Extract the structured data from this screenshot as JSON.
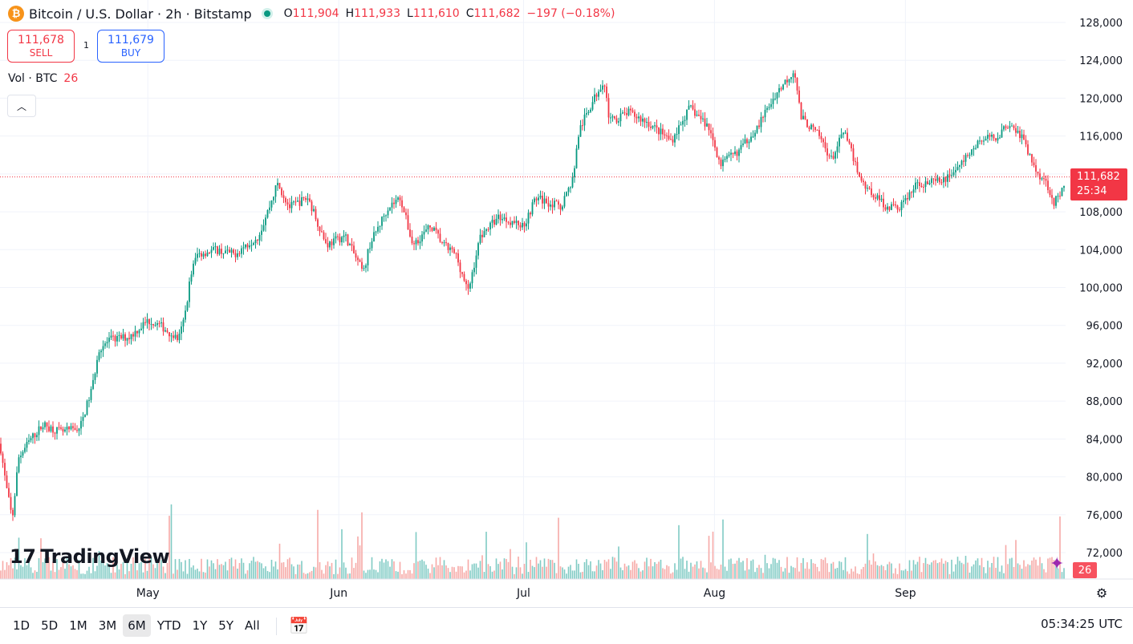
{
  "header": {
    "coin_symbol": "₿",
    "title": "Bitcoin / U.S. Dollar · 2h · Bitstamp",
    "ohlc": [
      {
        "key": "O",
        "value": "111,904"
      },
      {
        "key": "H",
        "value": "111,933"
      },
      {
        "key": "L",
        "value": "111,610"
      },
      {
        "key": "C",
        "value": "111,682"
      }
    ],
    "change": "−197 (−0.18%)"
  },
  "trade": {
    "sell_price": "111,678",
    "sell_label": "SELL",
    "spread": "1",
    "buy_price": "111,679",
    "buy_label": "BUY"
  },
  "volume_legend": {
    "label": "Vol · BTC",
    "value": "26"
  },
  "collapse_icon": "chevron-up-icon",
  "brand": {
    "name": "TradingView",
    "mark": "17"
  },
  "price_tag": {
    "price": "111,682",
    "countdown": "25:34"
  },
  "volume_tag": "26",
  "bottom_bar": {
    "ranges": [
      "1D",
      "5D",
      "1M",
      "3M",
      "6M",
      "YTD",
      "1Y",
      "5Y",
      "All"
    ],
    "active_range": "6M",
    "clock": "05:34:25 UTC"
  },
  "colors": {
    "up": "#089981",
    "down": "#f23645",
    "up_vol": "#80cbc4",
    "down_vol": "#f7a9a7",
    "grid": "#f0f3fa"
  },
  "chart_data": {
    "type": "candlestick",
    "title": "",
    "ylabel": "",
    "xlabel": "",
    "y_ticks": [
      72000,
      76000,
      80000,
      84000,
      88000,
      92000,
      96000,
      100000,
      104000,
      108000,
      112000,
      116000,
      120000,
      124000,
      128000
    ],
    "y_tick_labels": [
      "72,000",
      "76,000",
      "80,000",
      "84,000",
      "88,000",
      "92,000",
      "96,000",
      "100,000",
      "104,000",
      "108,000",
      "",
      "116,000",
      "120,000",
      "124,000",
      "128,000"
    ],
    "ylim": [
      69000,
      129500
    ],
    "x_labels": [
      {
        "label": "May",
        "date": "2025-05-01"
      },
      {
        "label": "Jun",
        "date": "2025-06-01"
      },
      {
        "label": "Jul",
        "date": "2025-07-01"
      },
      {
        "label": "Aug",
        "date": "2025-08-01"
      },
      {
        "label": "Sep",
        "date": "2025-09-01"
      }
    ],
    "xlim": [
      "2025-04-07",
      "2025-09-27"
    ],
    "last_price": 111682,
    "price_path": [
      {
        "date": "2025-04-07",
        "price": 83500
      },
      {
        "date": "2025-04-08",
        "price": 79000
      },
      {
        "date": "2025-04-09",
        "price": 75500
      },
      {
        "date": "2025-04-10",
        "price": 82000
      },
      {
        "date": "2025-04-12",
        "price": 84000
      },
      {
        "date": "2025-04-14",
        "price": 85500
      },
      {
        "date": "2025-04-17",
        "price": 84700
      },
      {
        "date": "2025-04-20",
        "price": 85200
      },
      {
        "date": "2025-04-22",
        "price": 89500
      },
      {
        "date": "2025-04-23",
        "price": 93500
      },
      {
        "date": "2025-04-25",
        "price": 94500
      },
      {
        "date": "2025-04-28",
        "price": 94800
      },
      {
        "date": "2025-05-01",
        "price": 96500
      },
      {
        "date": "2025-05-03",
        "price": 96000
      },
      {
        "date": "2025-05-06",
        "price": 94500
      },
      {
        "date": "2025-05-07",
        "price": 97000
      },
      {
        "date": "2025-05-08",
        "price": 101500
      },
      {
        "date": "2025-05-09",
        "price": 103500
      },
      {
        "date": "2025-05-12",
        "price": 104000
      },
      {
        "date": "2025-05-15",
        "price": 103500
      },
      {
        "date": "2025-05-19",
        "price": 105500
      },
      {
        "date": "2025-05-21",
        "price": 109000
      },
      {
        "date": "2025-05-22",
        "price": 111000
      },
      {
        "date": "2025-05-24",
        "price": 108500
      },
      {
        "date": "2025-05-27",
        "price": 109500
      },
      {
        "date": "2025-05-30",
        "price": 104500
      },
      {
        "date": "2025-06-02",
        "price": 105500
      },
      {
        "date": "2025-06-05",
        "price": 101500
      },
      {
        "date": "2025-06-06",
        "price": 104500
      },
      {
        "date": "2025-06-09",
        "price": 108500
      },
      {
        "date": "2025-06-11",
        "price": 109500
      },
      {
        "date": "2025-06-13",
        "price": 104500
      },
      {
        "date": "2025-06-16",
        "price": 106500
      },
      {
        "date": "2025-06-18",
        "price": 104500
      },
      {
        "date": "2025-06-20",
        "price": 103500
      },
      {
        "date": "2025-06-22",
        "price": 99500
      },
      {
        "date": "2025-06-24",
        "price": 105500
      },
      {
        "date": "2025-06-27",
        "price": 107500
      },
      {
        "date": "2025-07-01",
        "price": 106500
      },
      {
        "date": "2025-07-03",
        "price": 109500
      },
      {
        "date": "2025-07-07",
        "price": 108500
      },
      {
        "date": "2025-07-09",
        "price": 111500
      },
      {
        "date": "2025-07-10",
        "price": 116500
      },
      {
        "date": "2025-07-11",
        "price": 118000
      },
      {
        "date": "2025-07-14",
        "price": 122000
      },
      {
        "date": "2025-07-15",
        "price": 117500
      },
      {
        "date": "2025-07-18",
        "price": 118500
      },
      {
        "date": "2025-07-21",
        "price": 117500
      },
      {
        "date": "2025-07-25",
        "price": 115500
      },
      {
        "date": "2025-07-28",
        "price": 119000
      },
      {
        "date": "2025-07-31",
        "price": 117000
      },
      {
        "date": "2025-08-02",
        "price": 113000
      },
      {
        "date": "2025-08-05",
        "price": 114500
      },
      {
        "date": "2025-08-08",
        "price": 117000
      },
      {
        "date": "2025-08-11",
        "price": 120500
      },
      {
        "date": "2025-08-14",
        "price": 123000
      },
      {
        "date": "2025-08-15",
        "price": 118000
      },
      {
        "date": "2025-08-18",
        "price": 116000
      },
      {
        "date": "2025-08-20",
        "price": 113500
      },
      {
        "date": "2025-08-22",
        "price": 116500
      },
      {
        "date": "2025-08-25",
        "price": 111000
      },
      {
        "date": "2025-08-29",
        "price": 108500
      },
      {
        "date": "2025-08-31",
        "price": 108500
      },
      {
        "date": "2025-09-03",
        "price": 111000
      },
      {
        "date": "2025-09-07",
        "price": 111200
      },
      {
        "date": "2025-09-10",
        "price": 113000
      },
      {
        "date": "2025-09-13",
        "price": 115500
      },
      {
        "date": "2025-09-16",
        "price": 116000
      },
      {
        "date": "2025-09-18",
        "price": 117500
      },
      {
        "date": "2025-09-20",
        "price": 115800
      },
      {
        "date": "2025-09-22",
        "price": 112500
      },
      {
        "date": "2025-09-24",
        "price": 111000
      },
      {
        "date": "2025-09-25",
        "price": 109000
      },
      {
        "date": "2025-09-26",
        "price": 109500
      },
      {
        "date": "2025-09-27",
        "price": 111682
      }
    ]
  }
}
